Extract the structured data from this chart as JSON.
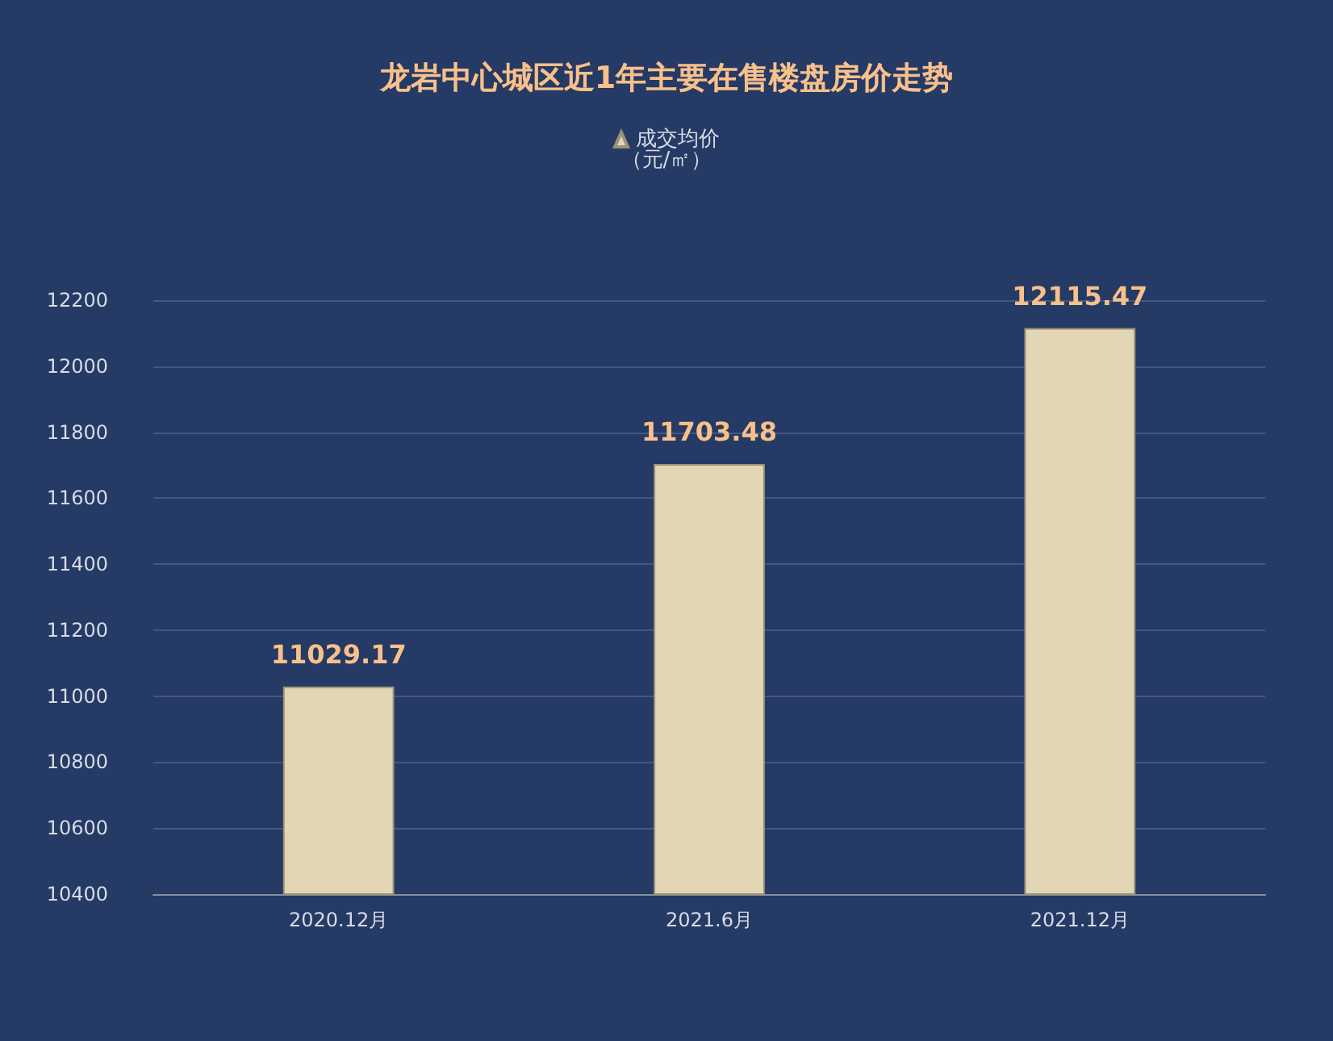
{
  "chart_data": {
    "type": "bar",
    "title": "龙岩中心城区近1年主要在售楼盘房价走势",
    "categories": [
      "2020.12月",
      "2021.6月",
      "2021.12月"
    ],
    "annotations": [
      "（元/㎡）"
    ],
    "series": [
      {
        "name": "成交均价",
        "color": "#e2d6b4",
        "values": [
          11029.17,
          11703.48,
          12115.47
        ]
      }
    ],
    "ylim": [
      10400,
      12200
    ],
    "yticks": [
      10400,
      10600,
      10800,
      11000,
      11200,
      11400,
      11600,
      11800,
      12000,
      12200
    ],
    "grid": "y",
    "legend": "top",
    "data_labels": true
  }
}
